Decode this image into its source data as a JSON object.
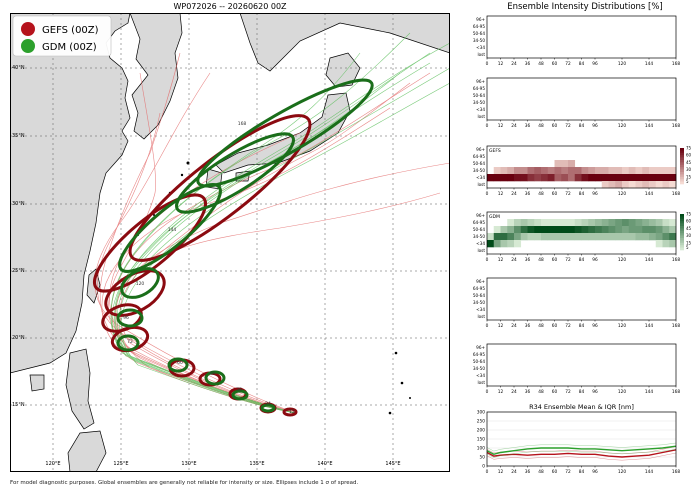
{
  "header": {
    "map_title": "WP072026 -- 20260620 00Z",
    "panel_title": "Ensemble Intensity Distributions [%]"
  },
  "legend": [
    {
      "label": "GEFS (00Z)",
      "color": "#b5121b"
    },
    {
      "label": "GDM (00Z)",
      "color": "#2ca02c"
    }
  ],
  "map": {
    "lat_labels": [
      "15°N",
      "20°N",
      "25°N",
      "30°N",
      "35°N",
      "40°N"
    ],
    "lon_labels": [
      "120°E",
      "125°E",
      "130°E",
      "135°E",
      "140°E",
      "145°E"
    ],
    "ellipse_labels": [
      "12",
      "24",
      "36",
      "48",
      "60",
      "72",
      "96",
      "120",
      "144",
      "168"
    ]
  },
  "chart_data": [
    {
      "type": "heatmap",
      "name": "blank-top-1",
      "y_categories": [
        "96+",
        "64-95",
        "50-64",
        "34-50",
        "<34",
        "lost"
      ],
      "x_ticks": [
        0,
        12,
        24,
        36,
        48,
        60,
        72,
        84,
        96,
        120,
        144,
        168
      ],
      "values": []
    },
    {
      "type": "heatmap",
      "name": "blank-top-2",
      "y_categories": [
        "96+",
        "64-95",
        "50-64",
        "34-50",
        "<34",
        "lost"
      ],
      "x_ticks": [
        0,
        12,
        24,
        36,
        48,
        60,
        72,
        84,
        96,
        120,
        144,
        168
      ],
      "values": []
    },
    {
      "type": "heatmap",
      "name": "GEFS",
      "label": "GEFS",
      "colorscale": "reds",
      "colorbar_ticks": [
        5,
        15,
        30,
        45,
        60,
        75
      ],
      "y_categories": [
        "96+",
        "64-95",
        "50-64",
        "34-50",
        "<34",
        "lost"
      ],
      "x_ticks": [
        0,
        12,
        24,
        36,
        48,
        60,
        72,
        84,
        96,
        120,
        144,
        168
      ],
      "intensity_rows": {
        "50-64": [
          0,
          0,
          0,
          0,
          0,
          0,
          0,
          0,
          0,
          0,
          15,
          15,
          20,
          0,
          0,
          0,
          0,
          0,
          0,
          0,
          0,
          0,
          0,
          0,
          0,
          0,
          0,
          0
        ],
        "34-50": [
          0,
          10,
          15,
          20,
          30,
          30,
          40,
          45,
          40,
          35,
          40,
          35,
          40,
          40,
          30,
          25,
          20,
          20,
          15,
          15,
          10,
          15,
          10,
          15,
          10,
          10,
          10,
          10
        ],
        "<34": [
          100,
          90,
          85,
          80,
          70,
          70,
          60,
          55,
          60,
          65,
          45,
          50,
          40,
          60,
          70,
          75,
          80,
          80,
          85,
          85,
          90,
          85,
          90,
          85,
          90,
          90,
          90,
          90
        ],
        "lost": [
          0,
          0,
          0,
          0,
          0,
          0,
          0,
          0,
          0,
          0,
          0,
          0,
          0,
          0,
          0,
          0,
          0,
          10,
          15,
          20,
          10,
          5,
          10,
          15,
          10,
          5,
          10,
          5
        ]
      }
    },
    {
      "type": "heatmap",
      "name": "GDM",
      "label": "GDM",
      "colorscale": "greens",
      "colorbar_ticks": [
        5,
        15,
        30,
        45,
        60,
        75
      ],
      "y_categories": [
        "96+",
        "64-95",
        "50-64",
        "34-50",
        "<34",
        "lost"
      ],
      "x_ticks": [
        0,
        12,
        24,
        36,
        48,
        60,
        72,
        84,
        96,
        120,
        144,
        168
      ],
      "intensity_rows": {
        "64-95": [
          0,
          0,
          0,
          5,
          15,
          20,
          15,
          10,
          5,
          5,
          5,
          5,
          5,
          10,
          15,
          20,
          25,
          30,
          35,
          40,
          45,
          40,
          35,
          30,
          25,
          20,
          10,
          5
        ],
        "50-64": [
          0,
          5,
          20,
          30,
          45,
          60,
          70,
          75,
          75,
          75,
          75,
          75,
          75,
          70,
          65,
          60,
          55,
          50,
          45,
          40,
          35,
          40,
          40,
          45,
          45,
          40,
          30,
          20
        ],
        "34-50": [
          10,
          60,
          60,
          50,
          35,
          20,
          15,
          15,
          20,
          20,
          20,
          20,
          20,
          20,
          20,
          20,
          20,
          20,
          20,
          20,
          20,
          20,
          25,
          25,
          30,
          35,
          45,
          55
        ],
        "<34": [
          90,
          35,
          20,
          15,
          5,
          0,
          0,
          0,
          0,
          0,
          0,
          0,
          0,
          0,
          0,
          0,
          0,
          0,
          0,
          0,
          0,
          0,
          0,
          0,
          0,
          5,
          15,
          20
        ],
        "lost": [
          0,
          0,
          0,
          0,
          0,
          0,
          0,
          0,
          0,
          0,
          0,
          0,
          0,
          0,
          0,
          0,
          0,
          0,
          0,
          0,
          0,
          0,
          0,
          0,
          0,
          0,
          0,
          0
        ]
      }
    },
    {
      "type": "heatmap",
      "name": "blank-bottom-1",
      "y_categories": [
        "96+",
        "64-95",
        "50-64",
        "34-50",
        "<34",
        "lost"
      ],
      "x_ticks": [
        0,
        12,
        24,
        36,
        48,
        60,
        72,
        84,
        96,
        120,
        144,
        168
      ],
      "values": []
    },
    {
      "type": "heatmap",
      "name": "blank-bottom-2",
      "y_categories": [
        "96+",
        "64-95",
        "50-64",
        "34-50",
        "<34",
        "lost"
      ],
      "x_ticks": [
        0,
        12,
        24,
        36,
        48,
        60,
        72,
        84,
        96,
        120,
        144,
        168
      ],
      "values": []
    },
    {
      "type": "line",
      "title": "R34 Ensemble Mean & IQR [nm]",
      "ylim": [
        0,
        300
      ],
      "y_ticks": [
        0,
        50,
        100,
        150,
        200,
        250,
        300
      ],
      "x_ticks": [
        0,
        12,
        24,
        36,
        48,
        60,
        72,
        84,
        96,
        120,
        144,
        168
      ],
      "series": [
        {
          "color": "#b5121b",
          "x": [
            0,
            6,
            12,
            24,
            36,
            48,
            60,
            72,
            84,
            96,
            108,
            120,
            132,
            144,
            156,
            168
          ],
          "values": [
            75,
            55,
            60,
            65,
            60,
            65,
            65,
            70,
            65,
            65,
            55,
            50,
            55,
            60,
            75,
            90
          ]
        },
        {
          "color": "#2ca02c",
          "x": [
            0,
            6,
            12,
            24,
            36,
            48,
            60,
            72,
            84,
            96,
            108,
            120,
            132,
            144,
            156,
            168
          ],
          "values": [
            85,
            65,
            75,
            85,
            95,
            100,
            100,
            100,
            95,
            95,
            90,
            85,
            90,
            95,
            100,
            110
          ]
        }
      ]
    }
  ],
  "footnote": "For model diagnostic purposes. Global ensembles are generally not reliable for intensity or size. Ellipses include 1 σ of spread."
}
